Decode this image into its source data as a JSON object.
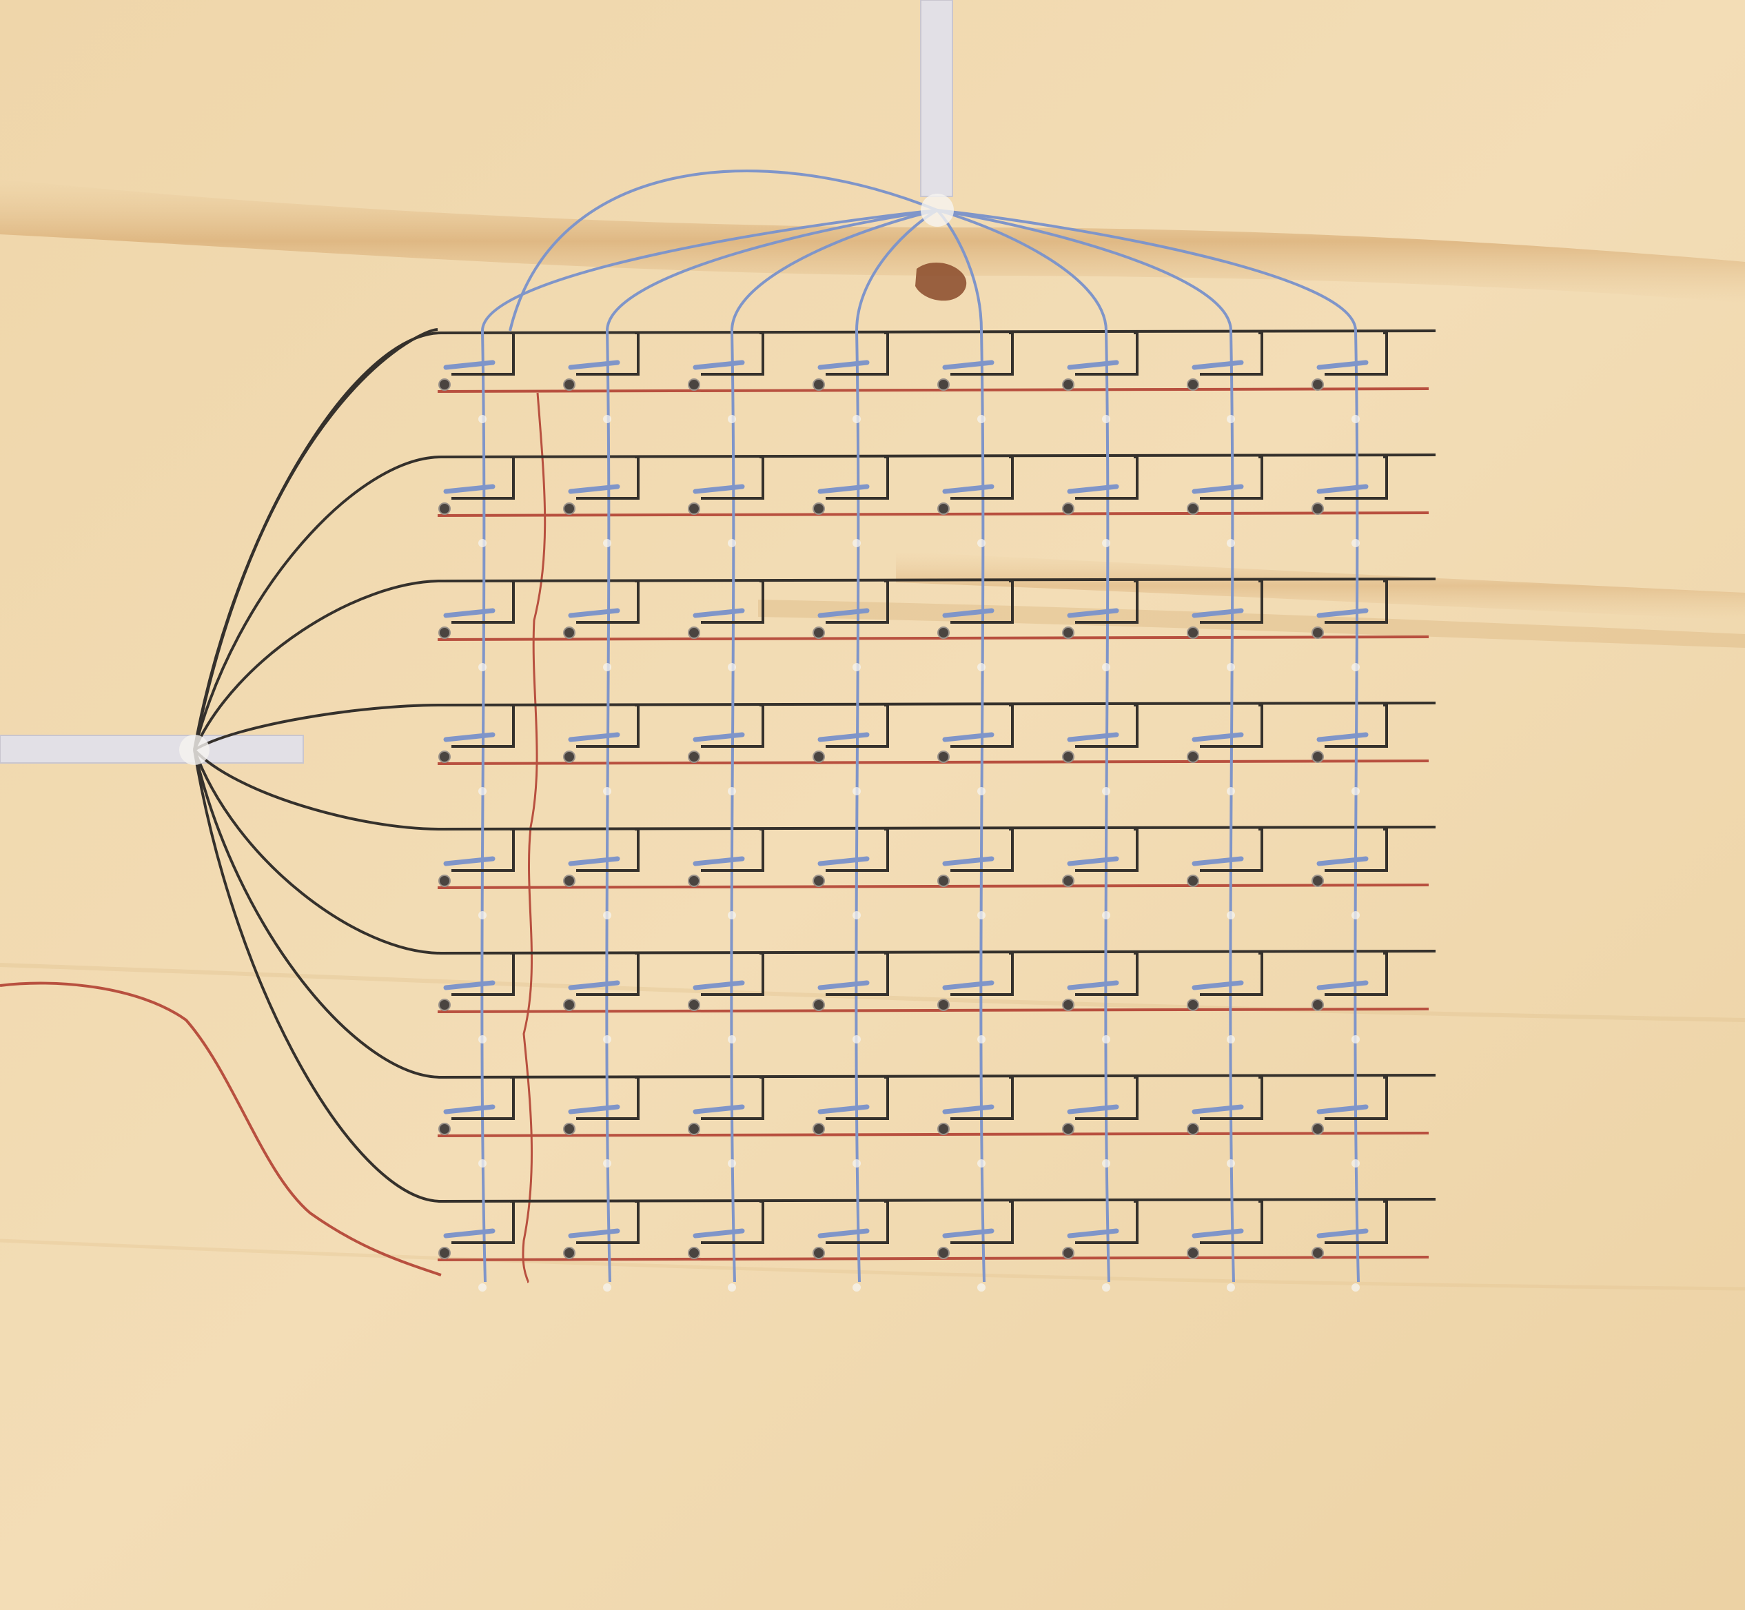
{
  "photo": {
    "subject": "led-matrix-wiring-on-plywood",
    "colors": {
      "wood_light": "#f3ddb6",
      "wood_mid": "#ecd0a0",
      "wood_grain": "#d9b27c",
      "wire_blue": "#7f95c9",
      "wire_black": "#35312c",
      "wire_red": "#b8503f",
      "ribbon": "#e2e0e6",
      "led_hole": "#4a4440",
      "glue": "#f6f4f0",
      "burn_mark": "#8a4a2a"
    }
  },
  "matrix": {
    "rows": 8,
    "columns": 8
  },
  "icons": {
    "ribbon_top": "ribbon-cable",
    "ribbon_left": "ribbon-cable",
    "led": "led-cell"
  }
}
